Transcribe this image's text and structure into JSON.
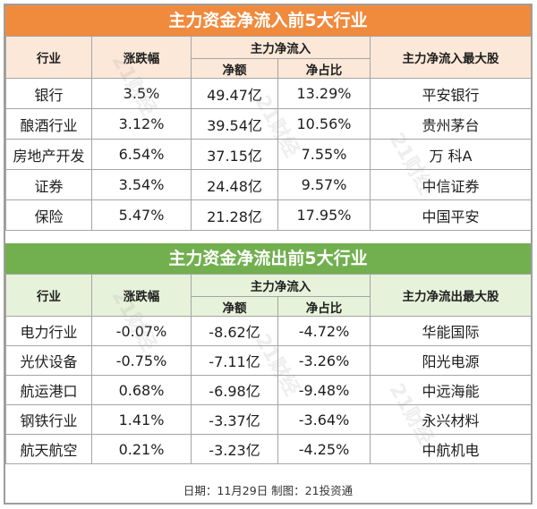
{
  "inflow": {
    "title": "主力资金净流入前5大行业",
    "headers": {
      "industry": "行业",
      "change": "涨跌幅",
      "net_group": "主力净流入",
      "net_amount": "净额",
      "net_ratio": "净占比",
      "top_stock": "主力净流入最大股"
    },
    "rows": [
      {
        "industry": "银行",
        "change": "3.5%",
        "amount": "49.47亿",
        "ratio": "13.29%",
        "stock": "平安银行"
      },
      {
        "industry": "酿酒行业",
        "change": "3.12%",
        "amount": "39.54亿",
        "ratio": "10.56%",
        "stock": "贵州茅台"
      },
      {
        "industry": "房地产开发",
        "change": "6.54%",
        "amount": "37.15亿",
        "ratio": "7.55%",
        "stock": "万 科A"
      },
      {
        "industry": "证券",
        "change": "3.54%",
        "amount": "24.48亿",
        "ratio": "9.57%",
        "stock": "中信证券"
      },
      {
        "industry": "保险",
        "change": "5.47%",
        "amount": "21.28亿",
        "ratio": "17.95%",
        "stock": "中国平安"
      }
    ]
  },
  "outflow": {
    "title": "主力资金净流出前5大行业",
    "headers": {
      "industry": "行业",
      "change": "涨跌幅",
      "net_group": "主力净流入",
      "net_amount": "净额",
      "net_ratio": "净占比",
      "top_stock": "主力净流出最大股"
    },
    "rows": [
      {
        "industry": "电力行业",
        "change": "-0.07%",
        "amount": "-8.62亿",
        "ratio": "-4.72%",
        "stock": "华能国际"
      },
      {
        "industry": "光伏设备",
        "change": "-0.75%",
        "amount": "-7.11亿",
        "ratio": "-3.26%",
        "stock": "阳光电源"
      },
      {
        "industry": "航运港口",
        "change": "0.68%",
        "amount": "-6.98亿",
        "ratio": "-9.48%",
        "stock": "中远海能"
      },
      {
        "industry": "钢铁行业",
        "change": "1.41%",
        "amount": "-3.37亿",
        "ratio": "-3.64%",
        "stock": "永兴材料"
      },
      {
        "industry": "航天航空",
        "change": "0.21%",
        "amount": "-3.23亿",
        "ratio": "-4.25%",
        "stock": "中航机电"
      }
    ]
  },
  "footer": "日期：11月29日 制图：21投资通",
  "watermark": "21财经",
  "colors": {
    "inflow_banner": "#f08a3d",
    "outflow_banner": "#72b04f",
    "inflow_header": "#fbe8d8",
    "outflow_header": "#e6f2da"
  }
}
